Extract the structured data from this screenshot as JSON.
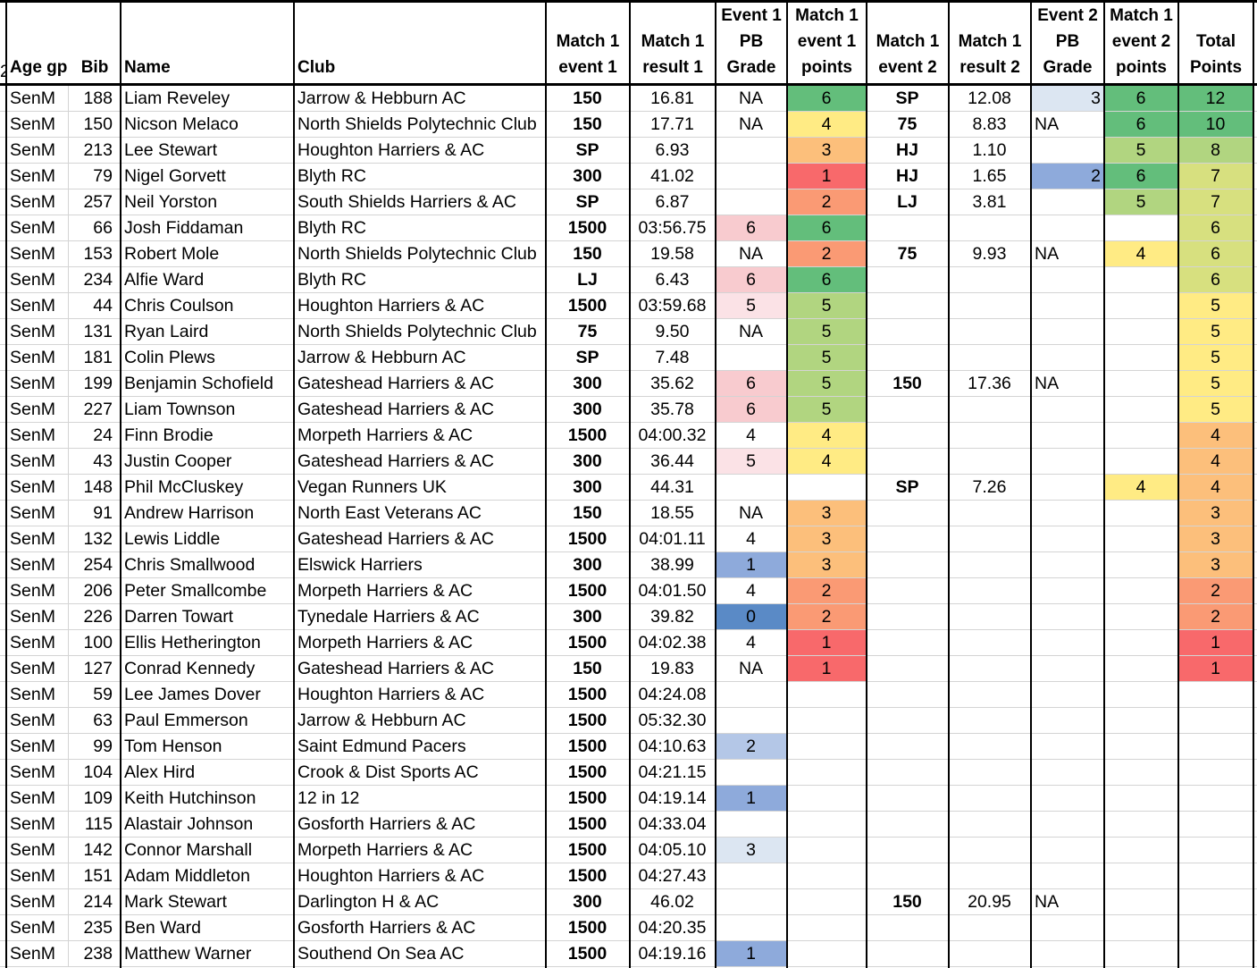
{
  "headers": {
    "age_gp": [
      "Age gp"
    ],
    "bib": [
      "Bib"
    ],
    "name": [
      "Name"
    ],
    "club": [
      "Club"
    ],
    "m1e1": [
      "Match 1",
      "event 1"
    ],
    "m1r1": [
      "Match 1",
      "result 1"
    ],
    "e1pb": [
      "Event 1",
      "PB",
      "Grade"
    ],
    "m1e1p": [
      "Match 1",
      "event 1",
      "points"
    ],
    "m1e2": [
      "Match 1",
      "event 2"
    ],
    "m1r2": [
      "Match 1",
      "result 2"
    ],
    "e2pb": [
      "Event 2",
      "PB",
      "Grade"
    ],
    "m1e2p": [
      "Match 1",
      "event 2",
      "points"
    ],
    "total": [
      "Total",
      "Points"
    ]
  },
  "colors": {
    "green_dark": "#63be7b",
    "green_mid": "#b1d580",
    "yellow_green": "#d7e07f",
    "yellow": "#ffeb84",
    "orange_light": "#fcbf7b",
    "orange": "#fa9a74",
    "red": "#f8696b",
    "pink": "#f8cbcf",
    "pink_light": "#fbe2e6",
    "blue_pale": "#dce6f2",
    "blue_light": "#b4c7e7",
    "blue_mid": "#8eaadb",
    "blue_dark": "#5a8ac6"
  },
  "rows": [
    {
      "age": "SenM",
      "bib": "188",
      "name": "Liam Reveley",
      "club": "Jarrow & Hebburn AC",
      "e1": "150",
      "r1": "16.81",
      "pb1": "NA",
      "p1": "6",
      "e2": "SP",
      "r2": "12.08",
      "pb2": "3",
      "p2": "6",
      "total": "12",
      "pb1c": "",
      "p1c": "green_dark",
      "pb2c": "blue_pale",
      "p2c": "green_dark",
      "tc": "green_dark"
    },
    {
      "age": "SenM",
      "bib": "150",
      "name": "Nicson Melaco",
      "club": "North Shields Polytechnic Club",
      "e1": "150",
      "r1": "17.71",
      "pb1": "NA",
      "p1": "4",
      "e2": "75",
      "r2": "8.83",
      "pb2": "NA",
      "p2": "6",
      "total": "10",
      "pb1c": "",
      "p1c": "yellow",
      "pb2c": "",
      "p2c": "green_dark",
      "tc": "green_dark"
    },
    {
      "age": "SenM",
      "bib": "213",
      "name": "Lee Stewart",
      "club": "Houghton Harriers & AC",
      "e1": "SP",
      "r1": "6.93",
      "pb1": "",
      "p1": "3",
      "e2": "HJ",
      "r2": "1.10",
      "pb2": "",
      "p2": "5",
      "total": "8",
      "pb1c": "",
      "p1c": "orange_light",
      "pb2c": "",
      "p2c": "green_mid",
      "tc": "green_mid"
    },
    {
      "age": "SenM",
      "bib": "79",
      "name": "Nigel Gorvett",
      "club": "Blyth RC",
      "e1": "300",
      "r1": "41.02",
      "pb1": "",
      "p1": "1",
      "e2": "HJ",
      "r2": "1.65",
      "pb2": "2",
      "p2": "6",
      "total": "7",
      "pb1c": "",
      "p1c": "red",
      "pb2c": "blue_mid",
      "p2c": "green_dark",
      "tc": "yellow_green"
    },
    {
      "age": "SenM",
      "bib": "257",
      "name": "Neil Yorston",
      "club": "South Shields Harriers & AC",
      "e1": "SP",
      "r1": "6.87",
      "pb1": "",
      "p1": "2",
      "e2": "LJ",
      "r2": "3.81",
      "pb2": "",
      "p2": "5",
      "total": "7",
      "pb1c": "",
      "p1c": "orange",
      "pb2c": "",
      "p2c": "green_mid",
      "tc": "yellow_green"
    },
    {
      "age": "SenM",
      "bib": "66",
      "name": "Josh Fiddaman",
      "club": "Blyth RC",
      "e1": "1500",
      "r1": "03:56.75",
      "pb1": "6",
      "p1": "6",
      "e2": "",
      "r2": "",
      "pb2": "",
      "p2": "",
      "total": "6",
      "pb1c": "pink",
      "p1c": "green_dark",
      "pb2c": "",
      "p2c": "",
      "tc": "yellow_green"
    },
    {
      "age": "SenM",
      "bib": "153",
      "name": "Robert Mole",
      "club": "North Shields Polytechnic Club",
      "e1": "150",
      "r1": "19.58",
      "pb1": "NA",
      "p1": "2",
      "e2": "75",
      "r2": "9.93",
      "pb2": "NA",
      "p2": "4",
      "total": "6",
      "pb1c": "",
      "p1c": "orange",
      "pb2c": "",
      "p2c": "yellow",
      "tc": "yellow_green"
    },
    {
      "age": "SenM",
      "bib": "234",
      "name": "Alfie Ward",
      "club": "Blyth RC",
      "e1": "LJ",
      "r1": "6.43",
      "pb1": "6",
      "p1": "6",
      "e2": "",
      "r2": "",
      "pb2": "",
      "p2": "",
      "total": "6",
      "pb1c": "pink",
      "p1c": "green_dark",
      "pb2c": "",
      "p2c": "",
      "tc": "yellow_green"
    },
    {
      "age": "SenM",
      "bib": "44",
      "name": "Chris Coulson",
      "club": "Houghton Harriers & AC",
      "e1": "1500",
      "r1": "03:59.68",
      "pb1": "5",
      "p1": "5",
      "e2": "",
      "r2": "",
      "pb2": "",
      "p2": "",
      "total": "5",
      "pb1c": "pink_light",
      "p1c": "green_mid",
      "pb2c": "",
      "p2c": "",
      "tc": "yellow"
    },
    {
      "age": "SenM",
      "bib": "131",
      "name": "Ryan Laird",
      "club": "North Shields Polytechnic Club",
      "e1": "75",
      "r1": "9.50",
      "pb1": "NA",
      "p1": "5",
      "e2": "",
      "r2": "",
      "pb2": "",
      "p2": "",
      "total": "5",
      "pb1c": "",
      "p1c": "green_mid",
      "pb2c": "",
      "p2c": "",
      "tc": "yellow"
    },
    {
      "age": "SenM",
      "bib": "181",
      "name": "Colin Plews",
      "club": "Jarrow & Hebburn AC",
      "e1": "SP",
      "r1": "7.48",
      "pb1": "",
      "p1": "5",
      "e2": "",
      "r2": "",
      "pb2": "",
      "p2": "",
      "total": "5",
      "pb1c": "",
      "p1c": "green_mid",
      "pb2c": "",
      "p2c": "",
      "tc": "yellow"
    },
    {
      "age": "SenM",
      "bib": "199",
      "name": "Benjamin Schofield",
      "club": "Gateshead Harriers & AC",
      "e1": "300",
      "r1": "35.62",
      "pb1": "6",
      "p1": "5",
      "e2": "150",
      "r2": "17.36",
      "pb2": "NA",
      "p2": "",
      "total": "5",
      "pb1c": "pink",
      "p1c": "green_mid",
      "pb2c": "",
      "p2c": "",
      "tc": "yellow"
    },
    {
      "age": "SenM",
      "bib": "227",
      "name": "Liam Townson",
      "club": "Gateshead Harriers & AC",
      "e1": "300",
      "r1": "35.78",
      "pb1": "6",
      "p1": "5",
      "e2": "",
      "r2": "",
      "pb2": "",
      "p2": "",
      "total": "5",
      "pb1c": "pink",
      "p1c": "green_mid",
      "pb2c": "",
      "p2c": "",
      "tc": "yellow"
    },
    {
      "age": "SenM",
      "bib": "24",
      "name": "Finn Brodie",
      "club": "Morpeth Harriers & AC",
      "e1": "1500",
      "r1": "04:00.32",
      "pb1": "4",
      "p1": "4",
      "e2": "",
      "r2": "",
      "pb2": "",
      "p2": "",
      "total": "4",
      "pb1c": "",
      "p1c": "yellow",
      "pb2c": "",
      "p2c": "",
      "tc": "orange_light"
    },
    {
      "age": "SenM",
      "bib": "43",
      "name": "Justin Cooper",
      "club": "Gateshead Harriers & AC",
      "e1": "300",
      "r1": "36.44",
      "pb1": "5",
      "p1": "4",
      "e2": "",
      "r2": "",
      "pb2": "",
      "p2": "",
      "total": "4",
      "pb1c": "pink_light",
      "p1c": "yellow",
      "pb2c": "",
      "p2c": "",
      "tc": "orange_light"
    },
    {
      "age": "SenM",
      "bib": "148",
      "name": "Phil McCluskey",
      "club": "Vegan Runners UK",
      "e1": "300",
      "r1": "44.31",
      "pb1": "",
      "p1": "",
      "e2": "SP",
      "r2": "7.26",
      "pb2": "",
      "p2": "4",
      "total": "4",
      "pb1c": "",
      "p1c": "",
      "pb2c": "",
      "p2c": "yellow",
      "tc": "orange_light"
    },
    {
      "age": "SenM",
      "bib": "91",
      "name": "Andrew Harrison",
      "club": "North East Veterans AC",
      "e1": "150",
      "r1": "18.55",
      "pb1": "NA",
      "p1": "3",
      "e2": "",
      "r2": "",
      "pb2": "",
      "p2": "",
      "total": "3",
      "pb1c": "",
      "p1c": "orange_light",
      "pb2c": "",
      "p2c": "",
      "tc": "orange_light"
    },
    {
      "age": "SenM",
      "bib": "132",
      "name": "Lewis Liddle",
      "club": "Gateshead Harriers & AC",
      "e1": "1500",
      "r1": "04:01.11",
      "pb1": "4",
      "p1": "3",
      "e2": "",
      "r2": "",
      "pb2": "",
      "p2": "",
      "total": "3",
      "pb1c": "",
      "p1c": "orange_light",
      "pb2c": "",
      "p2c": "",
      "tc": "orange_light"
    },
    {
      "age": "SenM",
      "bib": "254",
      "name": "Chris Smallwood",
      "club": "Elswick Harriers",
      "e1": "300",
      "r1": "38.99",
      "pb1": "1",
      "p1": "3",
      "e2": "",
      "r2": "",
      "pb2": "",
      "p2": "",
      "total": "3",
      "pb1c": "blue_mid",
      "p1c": "orange_light",
      "pb2c": "",
      "p2c": "",
      "tc": "orange_light"
    },
    {
      "age": "SenM",
      "bib": "206",
      "name": "Peter Smallcombe",
      "club": "Morpeth Harriers & AC",
      "e1": "1500",
      "r1": "04:01.50",
      "pb1": "4",
      "p1": "2",
      "e2": "",
      "r2": "",
      "pb2": "",
      "p2": "",
      "total": "2",
      "pb1c": "",
      "p1c": "orange",
      "pb2c": "",
      "p2c": "",
      "tc": "orange"
    },
    {
      "age": "SenM",
      "bib": "226",
      "name": "Darren Towart",
      "club": "Tynedale Harriers & AC",
      "e1": "300",
      "r1": "39.82",
      "pb1": "0",
      "p1": "2",
      "e2": "",
      "r2": "",
      "pb2": "",
      "p2": "",
      "total": "2",
      "pb1c": "blue_dark",
      "p1c": "orange",
      "pb2c": "",
      "p2c": "",
      "tc": "orange"
    },
    {
      "age": "SenM",
      "bib": "100",
      "name": "Ellis Hetherington",
      "club": "Morpeth Harriers & AC",
      "e1": "1500",
      "r1": "04:02.38",
      "pb1": "4",
      "p1": "1",
      "e2": "",
      "r2": "",
      "pb2": "",
      "p2": "",
      "total": "1",
      "pb1c": "",
      "p1c": "red",
      "pb2c": "",
      "p2c": "",
      "tc": "red"
    },
    {
      "age": "SenM",
      "bib": "127",
      "name": "Conrad Kennedy",
      "club": "Gateshead Harriers & AC",
      "e1": "150",
      "r1": "19.83",
      "pb1": "NA",
      "p1": "1",
      "e2": "",
      "r2": "",
      "pb2": "",
      "p2": "",
      "total": "1",
      "pb1c": "",
      "p1c": "red",
      "pb2c": "",
      "p2c": "",
      "tc": "red"
    },
    {
      "age": "SenM",
      "bib": "59",
      "name": "Lee James Dover",
      "club": "Houghton Harriers & AC",
      "e1": "1500",
      "r1": "04:24.08",
      "pb1": "",
      "p1": "",
      "e2": "",
      "r2": "",
      "pb2": "",
      "p2": "",
      "total": "",
      "pb1c": "",
      "p1c": "",
      "pb2c": "",
      "p2c": "",
      "tc": ""
    },
    {
      "age": "SenM",
      "bib": "63",
      "name": "Paul Emmerson",
      "club": "Jarrow & Hebburn AC",
      "e1": "1500",
      "r1": "05:32.30",
      "pb1": "",
      "p1": "",
      "e2": "",
      "r2": "",
      "pb2": "",
      "p2": "",
      "total": "",
      "pb1c": "",
      "p1c": "",
      "pb2c": "",
      "p2c": "",
      "tc": ""
    },
    {
      "age": "SenM",
      "bib": "99",
      "name": "Tom Henson",
      "club": "Saint Edmund Pacers",
      "e1": "1500",
      "r1": "04:10.63",
      "pb1": "2",
      "p1": "",
      "e2": "",
      "r2": "",
      "pb2": "",
      "p2": "",
      "total": "",
      "pb1c": "blue_light",
      "p1c": "",
      "pb2c": "",
      "p2c": "",
      "tc": ""
    },
    {
      "age": "SenM",
      "bib": "104",
      "name": "Alex Hird",
      "club": "Crook & Dist Sports AC",
      "e1": "1500",
      "r1": "04:21.15",
      "pb1": "",
      "p1": "",
      "e2": "",
      "r2": "",
      "pb2": "",
      "p2": "",
      "total": "",
      "pb1c": "",
      "p1c": "",
      "pb2c": "",
      "p2c": "",
      "tc": ""
    },
    {
      "age": "SenM",
      "bib": "109",
      "name": "Keith Hutchinson",
      "club": "12 in 12",
      "e1": "1500",
      "r1": "04:19.14",
      "pb1": "1",
      "p1": "",
      "e2": "",
      "r2": "",
      "pb2": "",
      "p2": "",
      "total": "",
      "pb1c": "blue_mid",
      "p1c": "",
      "pb2c": "",
      "p2c": "",
      "tc": ""
    },
    {
      "age": "SenM",
      "bib": "115",
      "name": "Alastair Johnson",
      "club": "Gosforth Harriers & AC",
      "e1": "1500",
      "r1": "04:33.04",
      "pb1": "",
      "p1": "",
      "e2": "",
      "r2": "",
      "pb2": "",
      "p2": "",
      "total": "",
      "pb1c": "",
      "p1c": "",
      "pb2c": "",
      "p2c": "",
      "tc": ""
    },
    {
      "age": "SenM",
      "bib": "142",
      "name": "Connor Marshall",
      "club": "Morpeth Harriers & AC",
      "e1": "1500",
      "r1": "04:05.10",
      "pb1": "3",
      "p1": "",
      "e2": "",
      "r2": "",
      "pb2": "",
      "p2": "",
      "total": "",
      "pb1c": "blue_pale",
      "p1c": "",
      "pb2c": "",
      "p2c": "",
      "tc": ""
    },
    {
      "age": "SenM",
      "bib": "151",
      "name": "Adam Middleton",
      "club": "Houghton Harriers & AC",
      "e1": "1500",
      "r1": "04:27.43",
      "pb1": "",
      "p1": "",
      "e2": "",
      "r2": "",
      "pb2": "",
      "p2": "",
      "total": "",
      "pb1c": "",
      "p1c": "",
      "pb2c": "",
      "p2c": "",
      "tc": ""
    },
    {
      "age": "SenM",
      "bib": "214",
      "name": "Mark Stewart",
      "club": "Darlington H & AC",
      "e1": "300",
      "r1": "46.02",
      "pb1": "",
      "p1": "",
      "e2": "150",
      "r2": "20.95",
      "pb2": "NA",
      "p2": "",
      "total": "",
      "pb1c": "",
      "p1c": "",
      "pb2c": "",
      "p2c": "",
      "tc": ""
    },
    {
      "age": "SenM",
      "bib": "235",
      "name": "Ben Ward",
      "club": "Gosforth Harriers & AC",
      "e1": "1500",
      "r1": "04:20.35",
      "pb1": "",
      "p1": "",
      "e2": "",
      "r2": "",
      "pb2": "",
      "p2": "",
      "total": "",
      "pb1c": "",
      "p1c": "",
      "pb2c": "",
      "p2c": "",
      "tc": ""
    },
    {
      "age": "SenM",
      "bib": "238",
      "name": "Matthew Warner",
      "club": "Southend On Sea AC",
      "e1": "1500",
      "r1": "04:19.16",
      "pb1": "1",
      "p1": "",
      "e2": "",
      "r2": "",
      "pb2": "",
      "p2": "",
      "total": "",
      "pb1c": "blue_mid",
      "p1c": "",
      "pb2c": "",
      "p2c": "",
      "tc": ""
    }
  ]
}
